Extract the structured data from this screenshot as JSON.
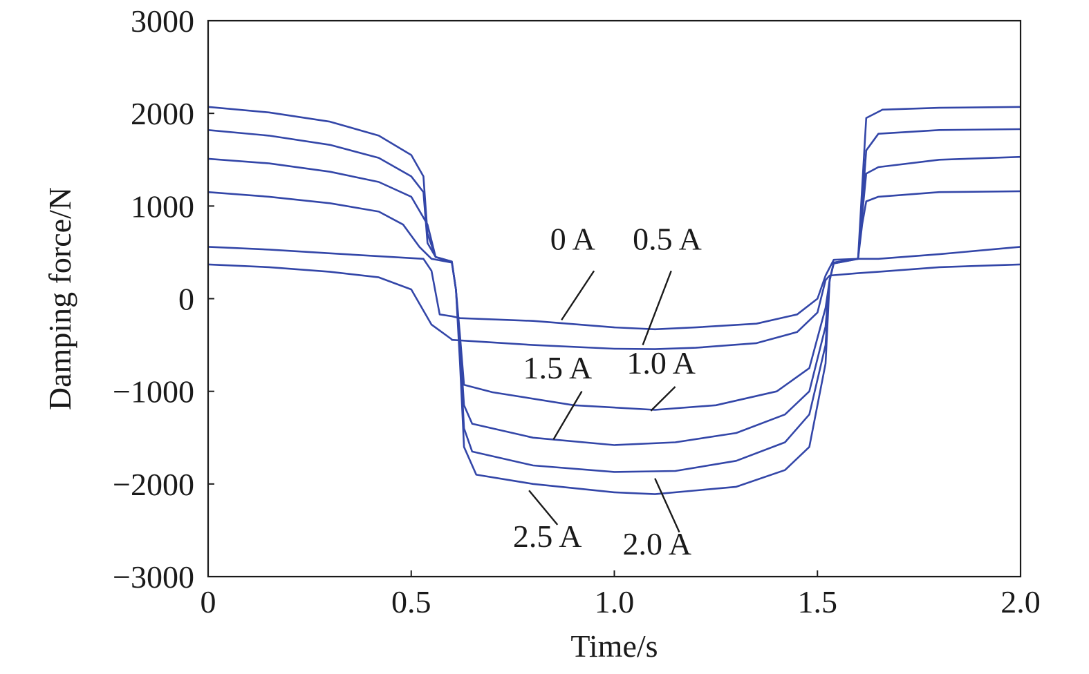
{
  "chart_data": {
    "type": "line",
    "title": "",
    "xlabel": "Time/s",
    "ylabel": "Damping force/N",
    "xlim": [
      0,
      2.0
    ],
    "ylim": [
      -3000,
      3000
    ],
    "x_ticks": [
      0,
      0.5,
      1.0,
      1.5,
      2.0
    ],
    "x_tick_labels": [
      "0",
      "0.5",
      "1.0",
      "1.5",
      "2.0"
    ],
    "y_ticks": [
      -3000,
      -2000,
      -1000,
      0,
      1000,
      2000,
      3000
    ],
    "y_tick_labels": [
      "−3000",
      "−2000",
      "−1000",
      "0",
      "1000",
      "2000",
      "3000"
    ],
    "grid": false,
    "legend": "none",
    "line_color": "#3346a8",
    "series": [
      {
        "name": "0 A",
        "x": [
          0,
          0.15,
          0.3,
          0.42,
          0.5,
          0.55,
          0.6,
          0.6,
          0.8,
          1.0,
          1.1,
          1.2,
          1.35,
          1.45,
          1.5,
          1.52,
          1.53,
          1.6,
          1.65,
          1.8,
          2.0
        ],
        "y": [
          370,
          340,
          290,
          230,
          100,
          -280,
          -440,
          -445,
          -500,
          -540,
          -545,
          -530,
          -480,
          -360,
          -150,
          200,
          250,
          275,
          290,
          340,
          370
        ]
      },
      {
        "name": "0.5 A",
        "x": [
          0,
          0.15,
          0.3,
          0.45,
          0.53,
          0.55,
          0.57,
          0.6,
          0.62,
          0.8,
          1.0,
          1.1,
          1.2,
          1.35,
          1.45,
          1.5,
          1.52,
          1.54,
          1.6,
          1.65,
          1.8,
          2.0
        ],
        "y": [
          560,
          530,
          490,
          450,
          430,
          300,
          -170,
          -190,
          -210,
          -240,
          -310,
          -330,
          -310,
          -270,
          -170,
          0,
          250,
          420,
          430,
          430,
          480,
          560
        ]
      },
      {
        "name": "1.0 A",
        "x": [
          0,
          0.15,
          0.3,
          0.42,
          0.48,
          0.52,
          0.55,
          0.6,
          0.61,
          0.62,
          0.63,
          0.7,
          0.9,
          1.1,
          1.25,
          1.4,
          1.48,
          1.52,
          1.53,
          1.54,
          1.6,
          1.61,
          1.62,
          1.65,
          1.8,
          2.0
        ],
        "y": [
          1150,
          1100,
          1030,
          940,
          800,
          560,
          430,
          390,
          100,
          -400,
          -930,
          -1010,
          -1150,
          -1200,
          -1150,
          -1000,
          -750,
          -100,
          200,
          380,
          430,
          800,
          1050,
          1100,
          1150,
          1160
        ]
      },
      {
        "name": "1.5 A",
        "x": [
          0,
          0.15,
          0.3,
          0.42,
          0.5,
          0.54,
          0.56,
          0.6,
          0.61,
          0.62,
          0.63,
          0.65,
          0.8,
          1.0,
          1.15,
          1.3,
          1.42,
          1.48,
          1.52,
          1.53,
          1.54,
          1.6,
          1.61,
          1.62,
          1.65,
          1.8,
          2.0
        ],
        "y": [
          1510,
          1460,
          1370,
          1260,
          1100,
          800,
          450,
          390,
          100,
          -500,
          -1150,
          -1350,
          -1500,
          -1580,
          -1550,
          -1450,
          -1250,
          -1000,
          -300,
          200,
          380,
          430,
          900,
          1350,
          1420,
          1500,
          1530
        ]
      },
      {
        "name": "2.0 A",
        "x": [
          0,
          0.15,
          0.3,
          0.42,
          0.5,
          0.53,
          0.54,
          0.56,
          0.6,
          0.61,
          0.62,
          0.63,
          0.65,
          0.8,
          1.0,
          1.15,
          1.3,
          1.42,
          1.48,
          1.52,
          1.53,
          1.54,
          1.6,
          1.61,
          1.62,
          1.65,
          1.8,
          2.0
        ],
        "y": [
          1820,
          1760,
          1660,
          1520,
          1320,
          1150,
          600,
          450,
          400,
          100,
          -600,
          -1400,
          -1650,
          -1800,
          -1870,
          -1860,
          -1750,
          -1550,
          -1250,
          -500,
          200,
          390,
          430,
          1000,
          1600,
          1780,
          1820,
          1830
        ]
      },
      {
        "name": "2.5 A",
        "x": [
          0,
          0.15,
          0.3,
          0.42,
          0.5,
          0.53,
          0.54,
          0.56,
          0.6,
          0.61,
          0.62,
          0.63,
          0.66,
          0.8,
          1.0,
          1.1,
          1.3,
          1.42,
          1.48,
          1.52,
          1.53,
          1.54,
          1.6,
          1.61,
          1.62,
          1.66,
          1.8,
          2.0
        ],
        "y": [
          2070,
          2010,
          1910,
          1760,
          1550,
          1320,
          700,
          450,
          400,
          100,
          -700,
          -1600,
          -1900,
          -2000,
          -2090,
          -2110,
          -2030,
          -1850,
          -1600,
          -700,
          200,
          390,
          430,
          1200,
          1950,
          2040,
          2060,
          2070
        ]
      }
    ],
    "annotations": [
      {
        "text": "0 A",
        "x": 0.953,
        "y": 530,
        "arrow_from": [
          0.95,
          300
        ],
        "arrow_to": [
          0.87,
          -230
        ]
      },
      {
        "text": "0.5 A",
        "x": 1.215,
        "y": 530,
        "arrow_from": [
          1.14,
          300
        ],
        "arrow_to": [
          1.07,
          -500
        ]
      },
      {
        "text": "1.0 A",
        "x": 1.2,
        "y": -810,
        "arrow_from": [
          1.15,
          -950
        ],
        "arrow_to": [
          1.09,
          -1210
        ]
      },
      {
        "text": "1.5 A",
        "x": 0.945,
        "y": -860,
        "arrow_from": [
          0.92,
          -1000
        ],
        "arrow_to": [
          0.85,
          -1520
        ]
      },
      {
        "text": "2.0 A",
        "x": 1.19,
        "y": -2760,
        "arrow_from": [
          1.16,
          -2520
        ],
        "arrow_to": [
          1.1,
          -1940
        ]
      },
      {
        "text": "2.5 A",
        "x": 0.92,
        "y": -2680,
        "arrow_from": [
          0.86,
          -2440
        ],
        "arrow_to": [
          0.79,
          -2070
        ]
      }
    ]
  }
}
